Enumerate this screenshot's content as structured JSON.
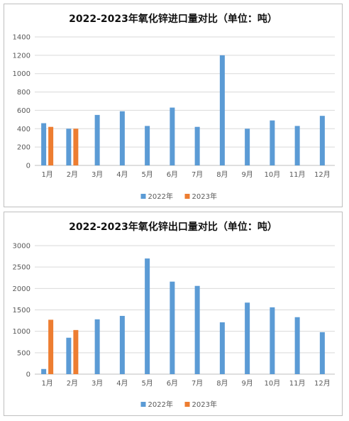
{
  "colors": {
    "y2022": "#5b9bd5",
    "y2023": "#ed7d31",
    "grid": "#d9d9d9",
    "axis": "#bfbfbf"
  },
  "chart_data": [
    {
      "type": "bar",
      "title": "2022-2023年氧化锌进口量对比（单位：吨）",
      "xlabel": "",
      "ylabel": "",
      "categories": [
        "1月",
        "2月",
        "3月",
        "4月",
        "5月",
        "6月",
        "7月",
        "8月",
        "9月",
        "10月",
        "11月",
        "12月"
      ],
      "ylim": [
        0,
        1400
      ],
      "yticks": [
        0,
        200,
        400,
        600,
        800,
        1000,
        1200,
        1400
      ],
      "grid": true,
      "legend_position": "bottom",
      "series": [
        {
          "name": "2022年",
          "values": [
            460,
            400,
            550,
            590,
            430,
            630,
            420,
            1200,
            400,
            490,
            430,
            540
          ]
        },
        {
          "name": "2023年",
          "values": [
            420,
            400,
            null,
            null,
            null,
            null,
            null,
            null,
            null,
            null,
            null,
            null
          ]
        }
      ]
    },
    {
      "type": "bar",
      "title": "2022-2023年氧化锌出口量对比（单位：吨）",
      "xlabel": "",
      "ylabel": "",
      "categories": [
        "1月",
        "2月",
        "3月",
        "4月",
        "5月",
        "6月",
        "7月",
        "8月",
        "9月",
        "10月",
        "11月",
        "12月"
      ],
      "ylim": [
        0,
        3000
      ],
      "yticks": [
        0,
        500,
        1000,
        1500,
        2000,
        2500,
        3000
      ],
      "grid": true,
      "legend_position": "bottom",
      "series": [
        {
          "name": "2022年",
          "values": [
            120,
            850,
            1280,
            1360,
            2700,
            2160,
            2060,
            1210,
            1670,
            1560,
            1330,
            980
          ]
        },
        {
          "name": "2023年",
          "values": [
            1270,
            1030,
            null,
            null,
            null,
            null,
            null,
            null,
            null,
            null,
            null,
            null
          ]
        }
      ]
    }
  ]
}
